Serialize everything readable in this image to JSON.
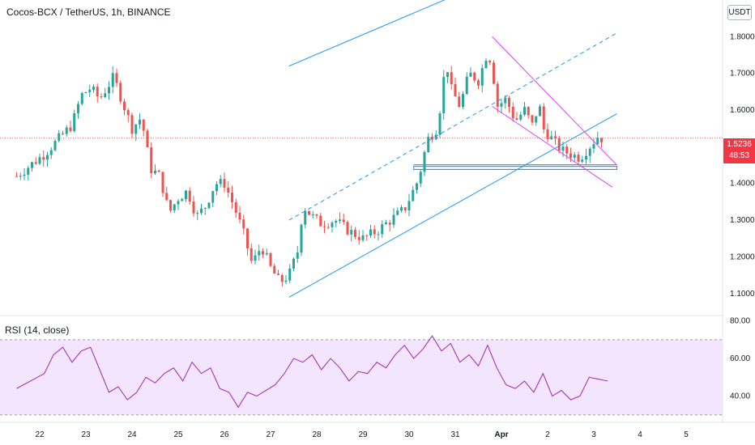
{
  "header": {
    "symbol_line": "Cocos-BCX / TetherUS, 1h, BINANCE"
  },
  "currency_label": "USDT",
  "price_tag": {
    "price": "1.5236",
    "countdown": "48:53"
  },
  "rsi_header": "RSI (14, close)",
  "colors": {
    "up_candle": "#26a69a",
    "down_candle": "#ef5350",
    "channel": "#2196f3",
    "wedge": "#e040fb",
    "rsi_line": "#9c27b0",
    "rsi_band": "#f3e5fd"
  },
  "chart_data": [
    {
      "type": "candlestick",
      "title": "",
      "y_ticks": [
        "1.8000",
        "1.7000",
        "1.6000",
        "1.4000",
        "1.3000",
        "1.2000",
        "1.1000"
      ],
      "x_ticks": [
        "22",
        "23",
        "24",
        "25",
        "26",
        "27",
        "28",
        "29",
        "30",
        "31",
        "Apr",
        "2",
        "3",
        "4",
        "5"
      ],
      "ylim": [
        1.04,
        1.9
      ],
      "current_price": 1.5236,
      "close_path": [
        [
          0.0,
          1.42
        ],
        [
          0.3,
          1.45
        ],
        [
          0.6,
          1.48
        ],
        [
          0.9,
          1.52
        ],
        [
          1.2,
          1.56
        ],
        [
          1.4,
          1.64
        ],
        [
          1.6,
          1.66
        ],
        [
          1.8,
          1.63
        ],
        [
          2.1,
          1.69
        ],
        [
          2.3,
          1.62
        ],
        [
          2.5,
          1.55
        ],
        [
          2.7,
          1.58
        ],
        [
          2.9,
          1.44
        ],
        [
          3.1,
          1.42
        ],
        [
          3.3,
          1.32
        ],
        [
          3.5,
          1.36
        ],
        [
          3.7,
          1.38
        ],
        [
          3.9,
          1.31
        ],
        [
          4.1,
          1.34
        ],
        [
          4.3,
          1.4
        ],
        [
          4.5,
          1.4
        ],
        [
          4.7,
          1.34
        ],
        [
          4.9,
          1.27
        ],
        [
          5.1,
          1.18
        ],
        [
          5.3,
          1.23
        ],
        [
          5.5,
          1.17
        ],
        [
          5.7,
          1.13
        ],
        [
          5.9,
          1.15
        ],
        [
          6.1,
          1.22
        ],
        [
          6.2,
          1.34
        ],
        [
          6.4,
          1.31
        ],
        [
          6.6,
          1.29
        ],
        [
          6.9,
          1.3
        ],
        [
          7.2,
          1.27
        ],
        [
          7.5,
          1.25
        ],
        [
          7.8,
          1.27
        ],
        [
          8.1,
          1.3
        ],
        [
          8.4,
          1.33
        ],
        [
          8.7,
          1.41
        ],
        [
          8.9,
          1.52
        ],
        [
          9.1,
          1.55
        ],
        [
          9.2,
          1.63
        ],
        [
          9.3,
          1.74
        ],
        [
          9.4,
          1.66
        ],
        [
          9.6,
          1.61
        ],
        [
          9.8,
          1.7
        ],
        [
          10.0,
          1.68
        ],
        [
          10.2,
          1.76
        ],
        [
          10.3,
          1.72
        ],
        [
          10.4,
          1.61
        ],
        [
          10.6,
          1.63
        ],
        [
          10.8,
          1.57
        ],
        [
          11.0,
          1.6
        ],
        [
          11.2,
          1.55
        ],
        [
          11.3,
          1.63
        ],
        [
          11.4,
          1.55
        ],
        [
          11.6,
          1.52
        ],
        [
          11.8,
          1.49
        ],
        [
          12.0,
          1.48
        ],
        [
          12.2,
          1.47
        ],
        [
          12.4,
          1.5
        ],
        [
          12.6,
          1.53
        ],
        [
          12.7,
          1.52
        ]
      ],
      "annotations": {
        "channel_upper": [
          [
            5.9,
            1.72
          ],
          [
            13.0,
            2.1
          ]
        ],
        "channel_mid": [
          [
            5.9,
            1.3
          ],
          [
            13.0,
            1.81
          ]
        ],
        "channel_lower": [
          [
            5.9,
            1.09
          ],
          [
            13.0,
            1.59
          ]
        ],
        "wedge_upper": [
          [
            10.3,
            1.8
          ],
          [
            13.0,
            1.45
          ]
        ],
        "wedge_lower": [
          [
            10.3,
            1.61
          ],
          [
            12.9,
            1.39
          ]
        ],
        "support_box": [
          [
            8.6,
            1.447
          ],
          [
            13.0,
            1.438
          ]
        ],
        "support_line": [
          [
            8.6,
            1.451
          ],
          [
            13.0,
            1.451
          ]
        ]
      }
    },
    {
      "type": "line",
      "title": "RSI (14, close)",
      "y_ticks": [
        "80.00",
        "60.00",
        "40.00"
      ],
      "ylim": [
        26,
        82
      ],
      "band": [
        30,
        70
      ],
      "series": [
        {
          "values_x": [
            0.0,
            0.3,
            0.6,
            0.8,
            1.0,
            1.2,
            1.4,
            1.6,
            1.8,
            2.0,
            2.2,
            2.4,
            2.6,
            2.8,
            3.0,
            3.2,
            3.4,
            3.6,
            3.8,
            4.0,
            4.2,
            4.4,
            4.6,
            4.8,
            5.0,
            5.2,
            5.4,
            5.6,
            5.8,
            6.0,
            6.2,
            6.4,
            6.6,
            6.8,
            7.0,
            7.2,
            7.4,
            7.6,
            7.8,
            8.0,
            8.2,
            8.4,
            8.6,
            8.8,
            9.0,
            9.2,
            9.4,
            9.6,
            9.8,
            10.0,
            10.2,
            10.4,
            10.6,
            10.8,
            11.0,
            11.2,
            11.4,
            11.6,
            11.8,
            12.0,
            12.2,
            12.4,
            12.6,
            12.8
          ],
          "values": [
            44,
            48,
            52,
            62,
            66,
            58,
            64,
            66,
            54,
            42,
            45,
            38,
            42,
            50,
            47,
            52,
            55,
            48,
            58,
            52,
            55,
            44,
            42,
            34,
            42,
            40,
            43,
            46,
            52,
            60,
            58,
            62,
            54,
            60,
            55,
            48,
            53,
            52,
            58,
            55,
            62,
            67,
            60,
            65,
            72,
            64,
            68,
            58,
            62,
            56,
            67,
            55,
            46,
            44,
            48,
            42,
            52,
            40,
            43,
            38,
            40,
            50,
            49,
            48
          ]
        }
      ]
    }
  ]
}
